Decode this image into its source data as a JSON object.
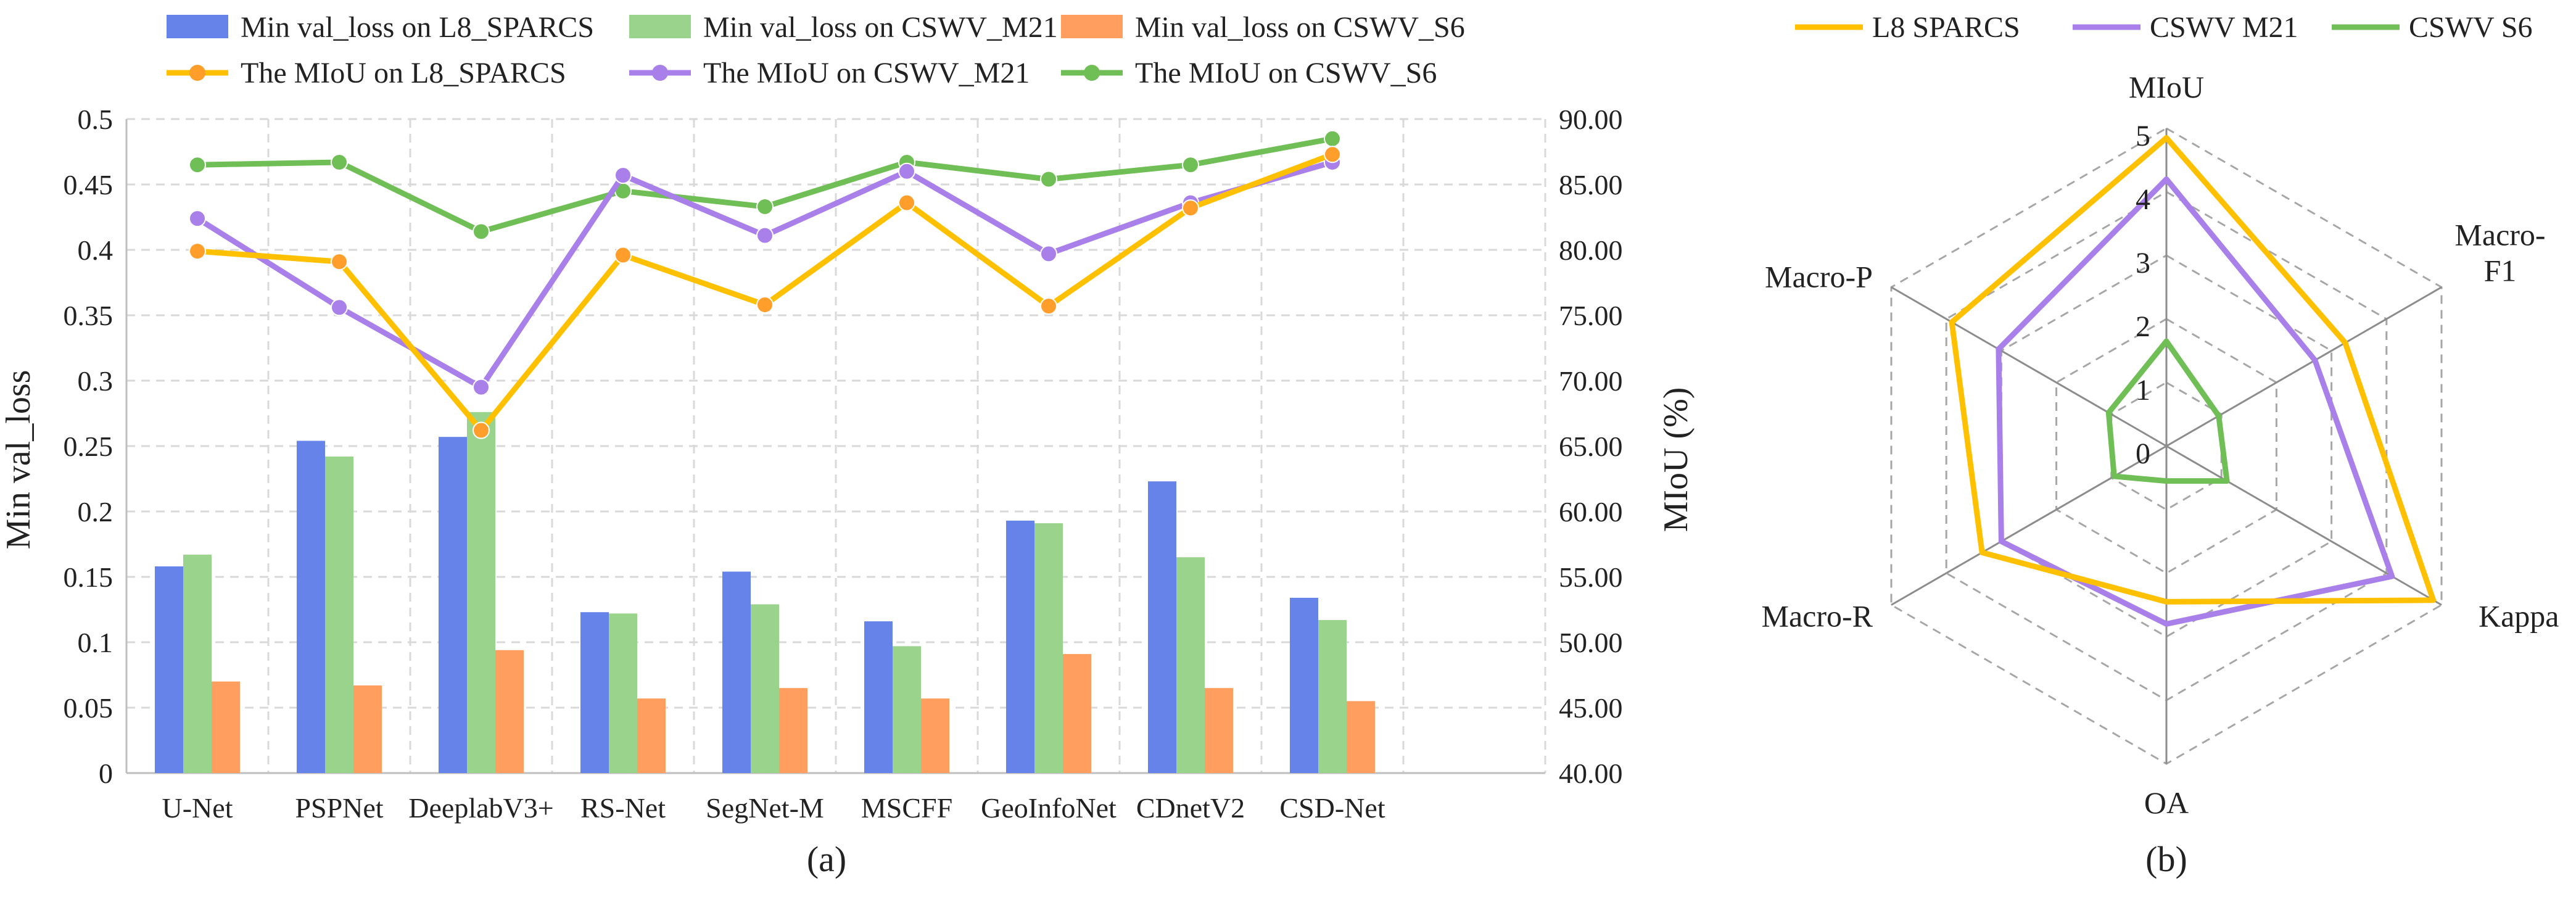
{
  "colors": {
    "l8_bar": "#6683EA",
    "m21_bar": "#9AD48C",
    "s6_bar": "#FF9E5E",
    "l8_line": "#FFC000",
    "m21_line": "#A97FEA",
    "s6_line": "#70BF56",
    "l8_marker": "#FF9E2A"
  },
  "panel_labels": {
    "a": "(a)",
    "b": "(b)"
  },
  "chart_data": [
    {
      "type": "bar",
      "title": "",
      "xlabel": "",
      "ylabel": "Min val_loss",
      "y2label": "MIoU (%)",
      "ylim": [
        0,
        0.5
      ],
      "y2lim": [
        40,
        90
      ],
      "y_ticks": [
        "0",
        "0.05",
        "0.1",
        "0.15",
        "0.2",
        "0.25",
        "0.3",
        "0.35",
        "0.4",
        "0.45",
        "0.5"
      ],
      "y2_ticks": [
        "40.00",
        "45.00",
        "50.00",
        "55.00",
        "60.00",
        "65.00",
        "70.00",
        "75.00",
        "80.00",
        "85.00",
        "90.00"
      ],
      "categories": [
        "U-Net",
        "PSPNet",
        "DeeplabV3+",
        "RS-Net",
        "SegNet-M",
        "MSCFF",
        "GeoInfoNet",
        "CDnetV2",
        "CSD-Net"
      ],
      "n_slots": 10,
      "legend_position": "top",
      "bar_series": [
        {
          "name": "Min val_loss on L8_SPARCS",
          "values": [
            0.158,
            0.254,
            0.257,
            0.123,
            0.154,
            0.116,
            0.193,
            0.223,
            0.134
          ]
        },
        {
          "name": "Min val_loss on CSWV_M21",
          "values": [
            0.167,
            0.242,
            0.276,
            0.122,
            0.129,
            0.097,
            0.191,
            0.165,
            0.117
          ]
        },
        {
          "name": "Min val_loss on CSWV_S6",
          "values": [
            0.07,
            0.067,
            0.094,
            0.057,
            0.065,
            0.057,
            0.091,
            0.065,
            0.055
          ]
        }
      ],
      "line_series": [
        {
          "name": "The MIoU on L8_SPARCS",
          "axis": "secondary",
          "values": [
            79.9,
            79.1,
            66.2,
            79.6,
            75.8,
            83.6,
            75.7,
            83.2,
            87.3
          ]
        },
        {
          "name": "The MIoU on CSWV_M21",
          "axis": "secondary",
          "values": [
            82.4,
            75.6,
            69.5,
            85.7,
            81.1,
            86.0,
            79.7,
            83.6,
            86.7
          ]
        },
        {
          "name": "The MIoU on CSWV_S6",
          "axis": "secondary",
          "values": [
            86.5,
            86.7,
            81.4,
            84.5,
            83.3,
            86.7,
            85.4,
            86.5,
            88.5
          ]
        }
      ]
    },
    {
      "type": "radar",
      "title": "",
      "axes": [
        "MIoU",
        "Macro-F1",
        "Kappa",
        "OA",
        "Macro-R",
        "Macro-P"
      ],
      "axis_label_lines": [
        [
          "MIoU"
        ],
        [
          "Macro-",
          "F1"
        ],
        [
          "Kappa"
        ],
        [
          "OA"
        ],
        [
          "Macro-R"
        ],
        [
          "Macro-P"
        ]
      ],
      "rlim": [
        0,
        5
      ],
      "r_ticks": [
        "0",
        "1",
        "2",
        "3",
        "4",
        "5"
      ],
      "legend_position": "top",
      "series": [
        {
          "name": "L8_SPARCS",
          "legend_label": "L8  SPARCS",
          "values": [
            4.85,
            3.25,
            4.85,
            2.45,
            3.35,
            3.9
          ]
        },
        {
          "name": "CSWV_M21",
          "legend_label": "CSWV  M21",
          "values": [
            4.2,
            2.7,
            4.1,
            2.8,
            3.0,
            3.05
          ]
        },
        {
          "name": "CSWV_S6",
          "legend_label": "CSWV  S6",
          "values": [
            1.65,
            0.95,
            1.1,
            0.55,
            0.95,
            1.05
          ]
        }
      ]
    }
  ]
}
